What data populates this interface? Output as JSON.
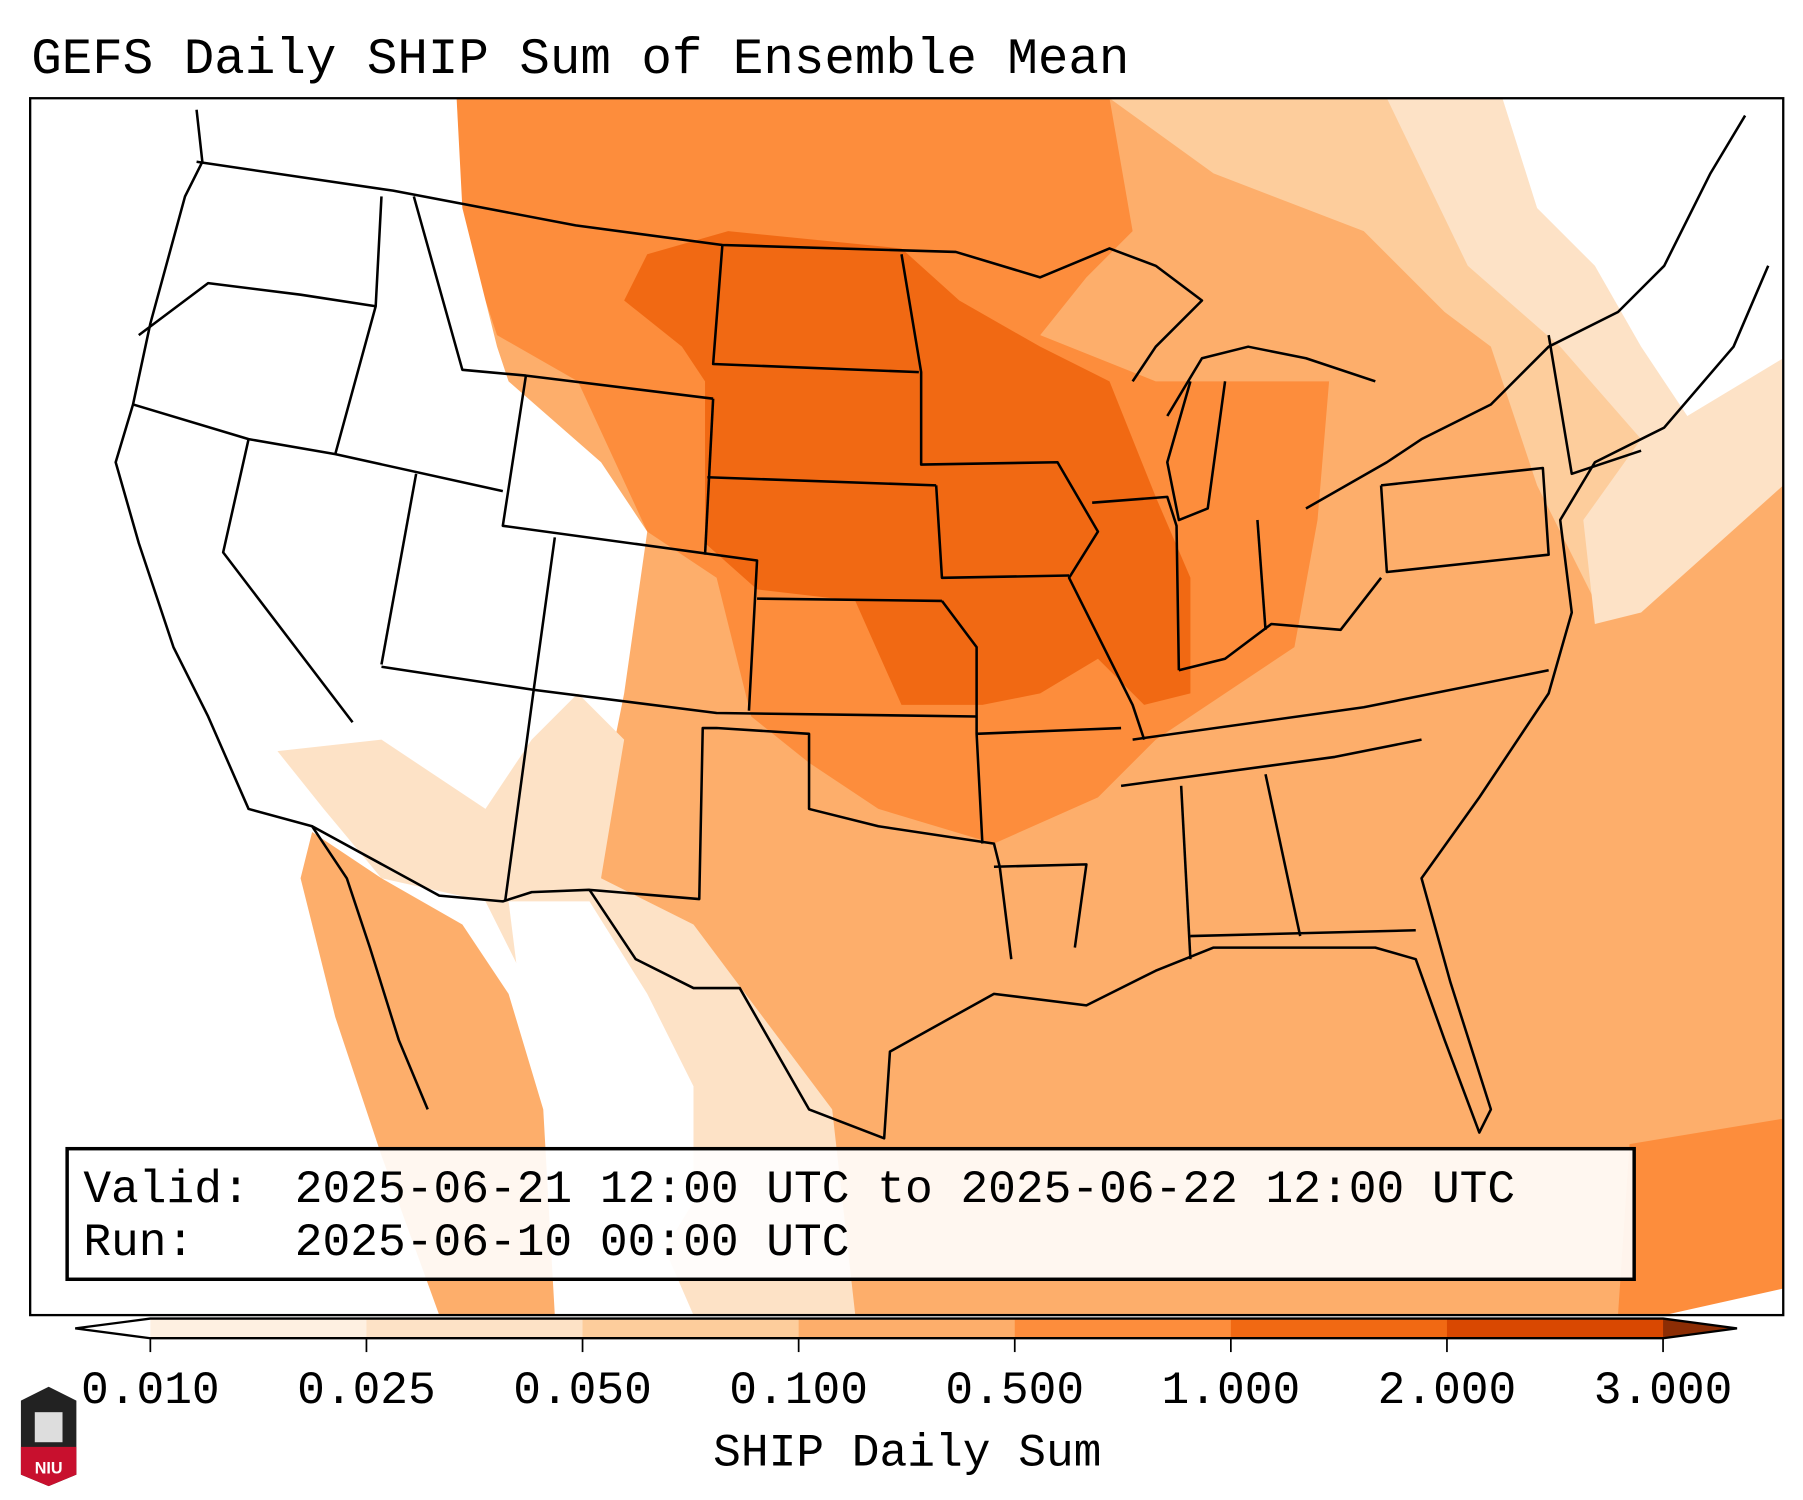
{
  "title": "GEFS Daily SHIP Sum of Ensemble Mean",
  "info_box": {
    "valid_label": "Valid:",
    "valid_value": "2025-06-21 12:00 UTC to 2025-06-22 12:00 UTC",
    "run_label": "Run:",
    "run_value": "2025-06-10 00:00 UTC"
  },
  "colorbar": {
    "label": "SHIP Daily Sum",
    "ticks": [
      "0.010",
      "0.025",
      "0.050",
      "0.100",
      "0.500",
      "1.000",
      "2.000",
      "3.000"
    ],
    "colors": [
      "#fef0e1",
      "#fde2c6",
      "#fdcd9c",
      "#fdae6b",
      "#fd8d3c",
      "#f16913",
      "#d94801",
      "#8c2d04"
    ],
    "under_color": "#ffffff"
  },
  "logo": {
    "text": "NIU"
  },
  "chart_data": {
    "type": "heatmap",
    "title": "GEFS Daily SHIP Sum of Ensemble Mean",
    "variable": "SHIP Daily Sum",
    "levels": [
      0.01,
      0.025,
      0.05,
      0.1,
      0.5,
      1.0,
      2.0,
      3.0
    ],
    "extend": "both"
  }
}
